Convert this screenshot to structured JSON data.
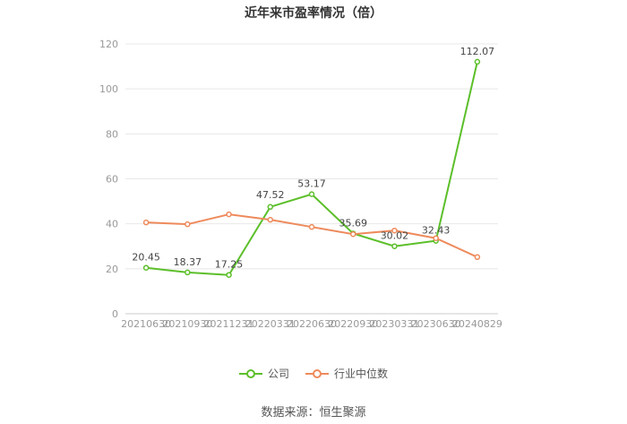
{
  "chart_data": {
    "type": "line",
    "title": "近年来市盈率情况（倍）",
    "categories": [
      "20210630",
      "20210930",
      "20211231",
      "20220331",
      "20220630",
      "20220930",
      "20230331",
      "20230630",
      "20240829"
    ],
    "ylim": [
      0,
      120
    ],
    "yticks": [
      0,
      20,
      40,
      60,
      80,
      100,
      120
    ],
    "grid": true,
    "legend_position": "bottom",
    "series": [
      {
        "name": "公司",
        "color": "#5cbf2a",
        "values": [
          20.45,
          18.37,
          17.25,
          47.52,
          53.17,
          35.69,
          30.02,
          32.43,
          112.07
        ],
        "labels": [
          "20.45",
          "18.37",
          "17.25",
          "47.52",
          "53.17",
          "35.69",
          "30.02",
          "32.43",
          "112.07"
        ]
      },
      {
        "name": "行业中位数",
        "color": "#ee8a5c",
        "values": [
          40.6,
          39.8,
          44.2,
          41.8,
          38.6,
          35.4,
          37.0,
          33.6,
          25.2
        ]
      }
    ],
    "source": "数据来源：恒生聚源"
  }
}
